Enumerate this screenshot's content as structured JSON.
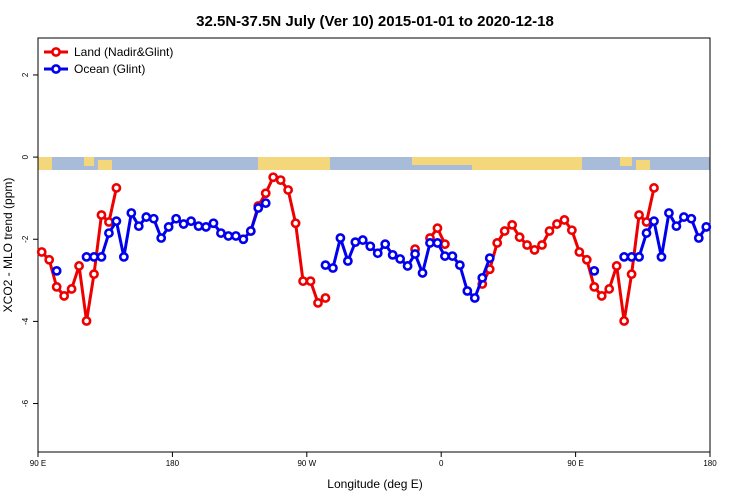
{
  "chart_data": {
    "type": "line",
    "title": "32.5N-37.5N July (Ver 10)   2015-01-01 to 2020-12-18",
    "x_label": "Longitude (deg E)",
    "y_label": "XCO2 - MLO trend (ppm)",
    "x": [
      92.5,
      97.5,
      102.5,
      107.5,
      112.5,
      117.5,
      122.5,
      127.5,
      132.5,
      137.5,
      142.5,
      147.5,
      152.5,
      157.5,
      162.5,
      167.5,
      172.5,
      177.5,
      182.5,
      187.5,
      192.5,
      197.5,
      202.5,
      207.5,
      212.5,
      217.5,
      222.5,
      227.5,
      232.5,
      237.5,
      242.5,
      247.5,
      252.5,
      257.5,
      262.5,
      267.5,
      272.5,
      277.5,
      282.5,
      287.5,
      292.5,
      297.5,
      302.5,
      307.5,
      312.5,
      317.5,
      322.5,
      327.5,
      332.5,
      337.5,
      342.5,
      347.5,
      352.5,
      357.5,
      362.5,
      367.5,
      372.5,
      377.5,
      382.5,
      387.5,
      392.5,
      397.5,
      402.5,
      407.5,
      412.5,
      417.5,
      422.5,
      427.5,
      432.5,
      437.5,
      442.5,
      447.5,
      452.5,
      457.5,
      462.5,
      467.5,
      472.5,
      477.5,
      482.5,
      487.5,
      492.5,
      497.5,
      502.5,
      507.5,
      512.5,
      517.5,
      522.5,
      527.5,
      532.5,
      537.5
    ],
    "series": [
      {
        "name": "Land (Nadir&Glint)",
        "color": "#ee0000",
        "values": [
          -2.31,
          -2.5,
          -3.16,
          -3.38,
          -3.21,
          -2.65,
          -3.99,
          -2.85,
          -1.41,
          -1.58,
          -0.75,
          null,
          null,
          null,
          null,
          null,
          null,
          null,
          null,
          null,
          null,
          null,
          null,
          null,
          null,
          null,
          null,
          null,
          -1.8,
          -1.19,
          -0.88,
          -0.49,
          -0.56,
          -0.8,
          -1.61,
          -3.02,
          -3.02,
          -3.55,
          -3.43,
          null,
          null,
          null,
          null,
          null,
          null,
          null,
          null,
          null,
          null,
          null,
          -2.24,
          null,
          -1.97,
          -1.73,
          -2.12,
          null,
          null,
          null,
          null,
          -3.09,
          -2.73,
          -2.09,
          -1.8,
          -1.65,
          -1.95,
          -2.14,
          -2.26,
          -2.14,
          -1.8,
          -1.63,
          -1.53,
          -1.78,
          -2.31,
          -2.5,
          -3.16,
          -3.38,
          -3.21,
          -2.65,
          -3.99,
          -2.85,
          -1.41,
          -1.58,
          -0.75,
          null,
          null,
          null,
          null,
          null,
          null,
          null
        ]
      },
      {
        "name": "Ocean (Glint)",
        "color": "#0000ee",
        "values": [
          null,
          null,
          -2.77,
          null,
          null,
          null,
          -2.43,
          -2.43,
          -2.43,
          -1.85,
          -1.56,
          -2.43,
          -1.36,
          -1.68,
          -1.46,
          -1.5,
          -1.97,
          -1.7,
          -1.5,
          -1.63,
          -1.56,
          -1.68,
          -1.7,
          -1.61,
          -1.85,
          -1.92,
          -1.92,
          -2.0,
          -1.8,
          -1.24,
          -1.12,
          null,
          null,
          null,
          null,
          null,
          null,
          null,
          -2.63,
          -2.7,
          -1.97,
          -2.53,
          -2.07,
          -2.02,
          -2.17,
          -2.34,
          -2.12,
          -2.38,
          -2.48,
          -2.65,
          -2.36,
          -2.82,
          -2.09,
          -2.09,
          -2.41,
          -2.41,
          -2.63,
          -3.26,
          -3.43,
          -2.94,
          -2.46,
          null,
          null,
          null,
          null,
          null,
          null,
          null,
          null,
          null,
          null,
          null,
          null,
          null,
          -2.77,
          null,
          null,
          null,
          -2.43,
          -2.43,
          -2.43,
          -1.85,
          -1.56,
          -2.43,
          -1.36,
          -1.68,
          -1.46,
          -1.5,
          -1.97,
          -1.7
        ]
      }
    ],
    "xlim": [
      90,
      540
    ],
    "ylim": [
      -7.18,
      2.9
    ],
    "xticks": [
      {
        "value": 90,
        "label": "90 E"
      },
      180,
      {
        "value": 270,
        "label": "90 W"
      },
      {
        "value": 360,
        "label": "0"
      },
      {
        "value": 450,
        "label": "90 E"
      },
      {
        "value": 540,
        "label": "180"
      }
    ],
    "yticks": [
      2,
      0,
      -2,
      -4,
      -6
    ],
    "legend": "top-left"
  }
}
